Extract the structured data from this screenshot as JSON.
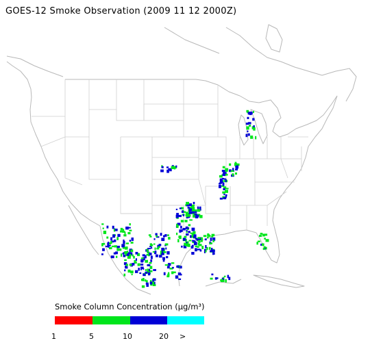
{
  "title": "GOES-12 Smoke Observation (2009 11 12  2000Z)",
  "legend": {
    "title": "Smoke Column Concentration (μg/m³)",
    "bins": [
      {
        "from": 1,
        "to": 5,
        "color": "#ff0000"
      },
      {
        "from": 5,
        "to": 10,
        "color": "#00e51c"
      },
      {
        "from": 10,
        "to": 20,
        "color": "#0000d6"
      },
      {
        "from": 20,
        "to": null,
        "color": "#00ffff"
      }
    ],
    "tick_labels": [
      "1",
      "5",
      "10",
      "20",
      ">"
    ]
  },
  "colors": {
    "boundary": "#c8c8c8",
    "coast": "#b4b4b4"
  }
}
